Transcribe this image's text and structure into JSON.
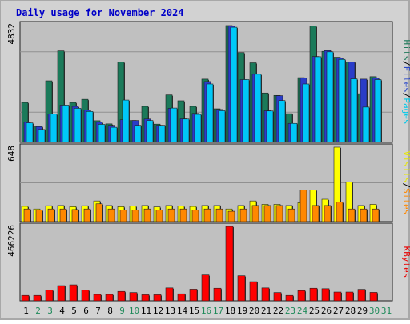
{
  "chart_data": {
    "type": "bar",
    "title": "Daily usage for November 2024",
    "categories": [
      "1",
      "2",
      "3",
      "4",
      "5",
      "6",
      "7",
      "8",
      "9",
      "10",
      "11",
      "12",
      "13",
      "14",
      "15",
      "16",
      "17",
      "18",
      "19",
      "20",
      "21",
      "22",
      "23",
      "24",
      "25",
      "26",
      "27",
      "28",
      "29",
      "30",
      "31"
    ],
    "weekend_days": [
      "2",
      "3",
      "9",
      "10",
      "16",
      "17",
      "23",
      "24",
      "30",
      "31"
    ],
    "panels": [
      {
        "id": "pages-files-hits",
        "max_label": "4832",
        "ylim": [
          0,
          4832
        ],
        "legend": [
          {
            "text": "Pages",
            "color": "#00c8e8"
          },
          {
            "text": "Files",
            "color": "#2a48c8"
          },
          {
            "text": "Hits",
            "color": "#1f7a5a"
          }
        ],
        "series": [
          {
            "name": "Hits",
            "color": "#1b7a5a",
            "values": [
              1640,
              640,
              2530,
              3760,
              1640,
              1770,
              890,
              760,
              3300,
              900,
              1480,
              750,
              1950,
              1710,
              1480,
              2600,
              1380,
              4800,
              3690,
              3270,
              2030,
              1930,
              1180,
              2660,
              4780,
              3740,
              3500,
              3300,
              2000,
              2700,
              0
            ]
          },
          {
            "name": "Files",
            "color": "#2a3cc8",
            "values": [
              830,
              650,
              1170,
              1530,
              1480,
              1330,
              830,
              700,
              930,
              900,
              960,
              700,
              1400,
              970,
              1190,
              2500,
              1350,
              4780,
              2580,
              2800,
              1300,
              1920,
              780,
              2650,
              3530,
              3770,
              3470,
              3310,
              2600,
              2640,
              0
            ]
          },
          {
            "name": "Pages",
            "color": "#00c8f8",
            "values": [
              800,
              530,
              1160,
              1530,
              1400,
              1270,
              740,
              620,
              1740,
              700,
              900,
              700,
              1410,
              960,
              1150,
              2400,
              1300,
              4730,
              2580,
              2800,
              1290,
              1720,
              780,
              2400,
              3520,
              3720,
              3410,
              2610,
              1450,
              2580,
              0
            ]
          }
        ]
      },
      {
        "id": "sites-visits",
        "max_label": "648",
        "ylim": [
          0,
          648
        ],
        "legend": [
          {
            "text": "Sites",
            "color": "#ff8800"
          },
          {
            "text": "Visits",
            "color": "#e8e800"
          }
        ],
        "series": [
          {
            "name": "Visits",
            "color": "#ffff00",
            "values": [
              133,
              110,
              138,
              140,
              130,
              138,
              180,
              140,
              130,
              135,
              140,
              128,
              140,
              135,
              132,
              140,
              140,
              110,
              140,
              180,
              150,
              150,
              140,
              165,
              276,
              195,
              648,
              345,
              140,
              150,
              0
            ]
          },
          {
            "name": "Sites",
            "color": "#ff8800",
            "values": [
              110,
              100,
              110,
              110,
              105,
              110,
              155,
              110,
              100,
              100,
              110,
              100,
              110,
              110,
              100,
              110,
              110,
              90,
              110,
              140,
              140,
              140,
              110,
              276,
              140,
              140,
              170,
              110,
              110,
              110,
              0
            ]
          }
        ]
      },
      {
        "id": "kbytes",
        "max_label": "466226",
        "ylim": [
          0,
          466226
        ],
        "legend": [
          {
            "text": "KBytes",
            "color": "#e80000"
          }
        ],
        "series": [
          {
            "name": "KBytes",
            "color": "#ff0000",
            "values": [
              34000,
              34000,
              67000,
              95000,
              100000,
              67000,
              40000,
              40000,
              59000,
              52000,
              38000,
              38000,
              81000,
              44000,
              73000,
              162000,
              79000,
              466000,
              157000,
              120000,
              81000,
              52000,
              34000,
              64000,
              79000,
              76000,
              55000,
              55000,
              72000,
              53000,
              0
            ]
          }
        ]
      }
    ]
  }
}
